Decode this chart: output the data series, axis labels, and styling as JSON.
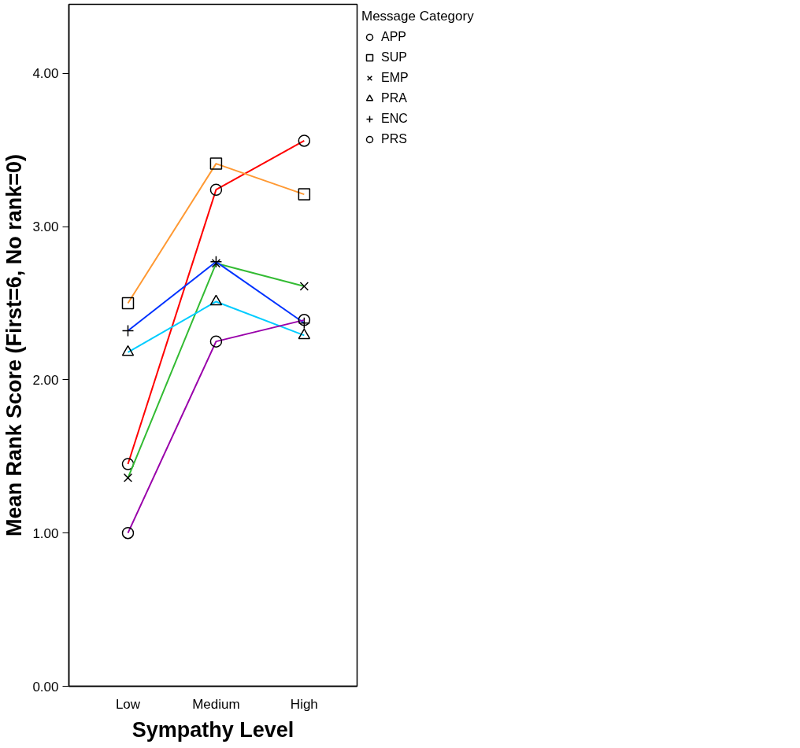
{
  "chart_data": {
    "type": "line",
    "xlabel": "Sympathy Level",
    "ylabel": "Mean Rank Score (First=6, No rank=0)",
    "legend_title": "Message Category",
    "categories": [
      "Low",
      "Medium",
      "High"
    ],
    "series": [
      {
        "name": "APP",
        "color": "#ff0000",
        "marker": "circle",
        "values": [
          1.45,
          3.24,
          3.56
        ]
      },
      {
        "name": "SUP",
        "color": "#ff9933",
        "marker": "square",
        "values": [
          2.5,
          3.41,
          3.21
        ]
      },
      {
        "name": "EMP",
        "color": "#33bb33",
        "marker": "x",
        "values": [
          1.36,
          2.76,
          2.61
        ]
      },
      {
        "name": "PRA",
        "color": "#00ccff",
        "marker": "triangle",
        "values": [
          2.18,
          2.51,
          2.29
        ]
      },
      {
        "name": "ENC",
        "color": "#0033ff",
        "marker": "cross",
        "values": [
          2.32,
          2.77,
          2.37
        ]
      },
      {
        "name": "PRS",
        "color": "#9900aa",
        "marker": "circle",
        "values": [
          1.0,
          2.25,
          2.39
        ]
      }
    ],
    "ylim": [
      0,
      4.45
    ],
    "yticks": [
      {
        "value": 0,
        "label": "0.00"
      },
      {
        "value": 1,
        "label": "1.00"
      },
      {
        "value": 2,
        "label": "2.00"
      },
      {
        "value": 3,
        "label": "3.00"
      },
      {
        "value": 4,
        "label": "4.00"
      }
    ],
    "legend": "right",
    "grid": false
  }
}
